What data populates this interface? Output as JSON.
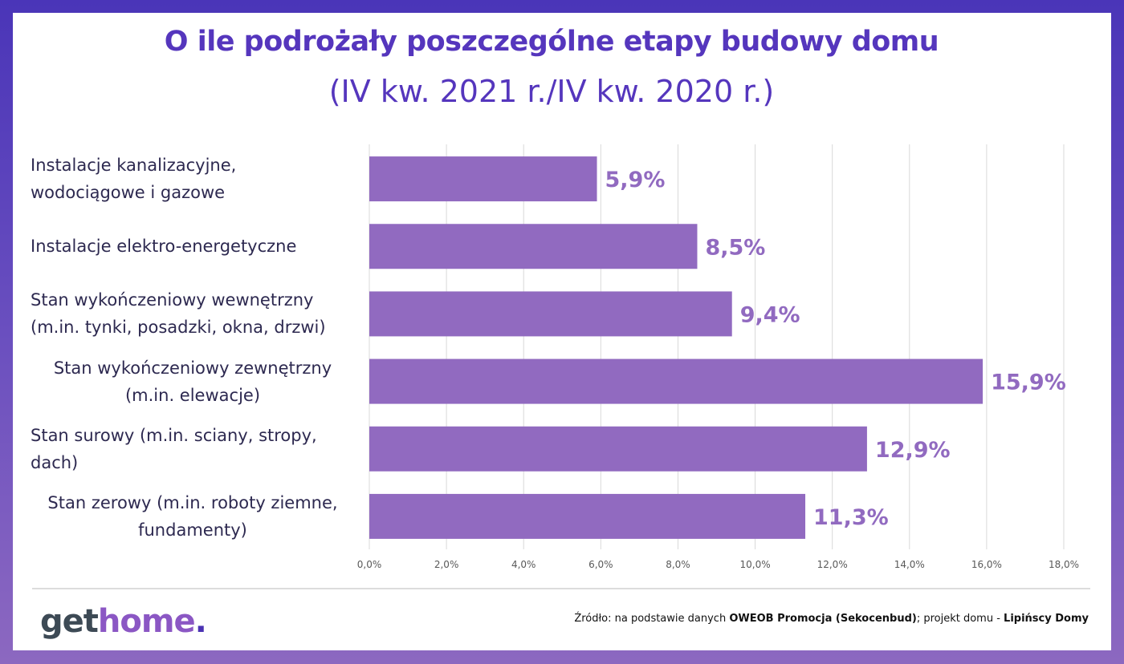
{
  "title": "O ile podrożały poszczególne etapy budowy domu",
  "subtitle": "(IV kw. 2021 r./IV kw. 2020 r.)",
  "chart_data": {
    "type": "bar",
    "orientation": "horizontal",
    "title": "O ile podrożały poszczególne etapy budowy domu",
    "subtitle": "(IV kw. 2021 r./IV kw. 2020 r.)",
    "categories": [
      [
        "Instalacje kanalizacyjne,",
        "wodociągowe i gazowe"
      ],
      [
        "Instalacje elektro-energetyczne"
      ],
      [
        "Stan wykończeniowy wewnętrzny",
        "(m.in. tynki, posadzki, okna, drzwi)"
      ],
      [
        "Stan wykończeniowy zewnętrzny",
        "(m.in. elewacje)"
      ],
      [
        "Stan surowy (m.in. sciany, stropy,",
        "dach)"
      ],
      [
        "Stan zerowy (m.in. roboty ziemne,",
        "fundamenty)"
      ]
    ],
    "values": [
      5.9,
      8.5,
      9.4,
      15.9,
      12.9,
      11.3
    ],
    "data_labels": [
      "5,9%",
      "8,5%",
      "9,4%",
      "15,9%",
      "12,9%",
      "11,3%"
    ],
    "xlim": [
      0,
      18
    ],
    "x_ticks": [
      "0,0%",
      "2,0%",
      "4,0%",
      "6,0%",
      "8,0%",
      "10,0%",
      "12,0%",
      "14,0%",
      "16,0%",
      "18,0%"
    ],
    "grid": true,
    "bar_color": "#916ac0",
    "label_color": "#916ac0"
  },
  "footer": {
    "logo": [
      "get",
      "home",
      "."
    ],
    "source_prefix": "Źródło: na podstawie danych ",
    "source_bold1": "OWEOB Promocja (Sekocenbud)",
    "source_mid": "; projekt domu - ",
    "source_bold2": "Lipińscy Domy"
  }
}
